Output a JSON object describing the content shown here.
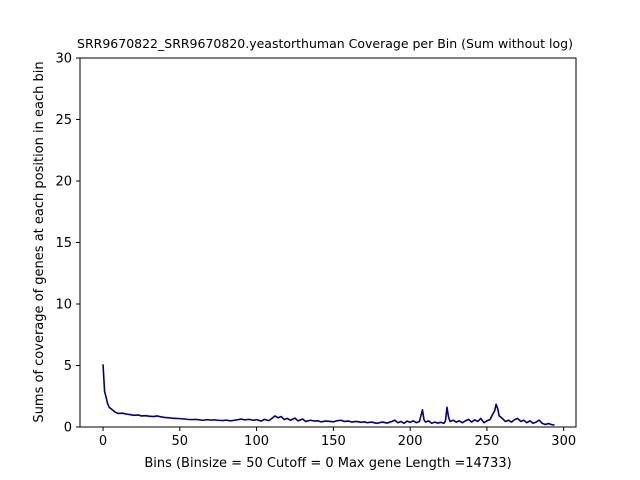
{
  "chart_data": {
    "type": "line",
    "title": "SRR9670822_SRR9670820.yeastorthuman Coverage per Bin (Sum without log)",
    "xlabel": "Bins  (Binsize = 50 Cutoff = 0 Max gene Length =14733)",
    "ylabel": "Sums of coverage of genes at each position in each bin",
    "xlim": [
      -15,
      308
    ],
    "ylim": [
      0,
      30
    ],
    "xticks": [
      0,
      50,
      100,
      150,
      200,
      250,
      300
    ],
    "yticks": [
      0,
      5,
      10,
      15,
      20,
      25,
      30
    ],
    "grid": false,
    "series": [
      {
        "color": "#00007f",
        "points": [
          [
            0,
            5.1
          ],
          [
            1,
            2.9
          ],
          [
            2,
            2.4
          ],
          [
            3,
            1.9
          ],
          [
            4,
            1.6
          ],
          [
            5,
            1.5
          ],
          [
            6,
            1.4
          ],
          [
            7,
            1.3
          ],
          [
            8,
            1.2
          ],
          [
            10,
            1.1
          ],
          [
            13,
            1.12
          ],
          [
            15,
            1.05
          ],
          [
            18,
            1.0
          ],
          [
            20,
            0.95
          ],
          [
            23,
            0.98
          ],
          [
            25,
            0.9
          ],
          [
            28,
            0.92
          ],
          [
            30,
            0.88
          ],
          [
            33,
            0.85
          ],
          [
            35,
            0.9
          ],
          [
            38,
            0.82
          ],
          [
            40,
            0.78
          ],
          [
            43,
            0.75
          ],
          [
            45,
            0.72
          ],
          [
            48,
            0.7
          ],
          [
            50,
            0.68
          ],
          [
            53,
            0.65
          ],
          [
            55,
            0.62
          ],
          [
            58,
            0.6
          ],
          [
            60,
            0.62
          ],
          [
            63,
            0.58
          ],
          [
            65,
            0.55
          ],
          [
            68,
            0.6
          ],
          [
            70,
            0.56
          ],
          [
            73,
            0.58
          ],
          [
            75,
            0.55
          ],
          [
            78,
            0.52
          ],
          [
            80,
            0.56
          ],
          [
            83,
            0.5
          ],
          [
            85,
            0.54
          ],
          [
            88,
            0.6
          ],
          [
            90,
            0.65
          ],
          [
            92,
            0.58
          ],
          [
            95,
            0.62
          ],
          [
            98,
            0.55
          ],
          [
            100,
            0.6
          ],
          [
            103,
            0.48
          ],
          [
            105,
            0.62
          ],
          [
            108,
            0.52
          ],
          [
            110,
            0.7
          ],
          [
            112,
            0.9
          ],
          [
            114,
            0.75
          ],
          [
            116,
            0.85
          ],
          [
            118,
            0.6
          ],
          [
            120,
            0.7
          ],
          [
            122,
            0.55
          ],
          [
            125,
            0.72
          ],
          [
            127,
            0.5
          ],
          [
            130,
            0.65
          ],
          [
            132,
            0.45
          ],
          [
            135,
            0.55
          ],
          [
            138,
            0.48
          ],
          [
            140,
            0.5
          ],
          [
            142,
            0.42
          ],
          [
            145,
            0.48
          ],
          [
            148,
            0.45
          ],
          [
            150,
            0.42
          ],
          [
            152,
            0.5
          ],
          [
            155,
            0.55
          ],
          [
            157,
            0.45
          ],
          [
            160,
            0.48
          ],
          [
            162,
            0.4
          ],
          [
            165,
            0.45
          ],
          [
            168,
            0.38
          ],
          [
            170,
            0.42
          ],
          [
            172,
            0.35
          ],
          [
            175,
            0.4
          ],
          [
            178,
            0.3
          ],
          [
            180,
            0.35
          ],
          [
            182,
            0.4
          ],
          [
            185,
            0.32
          ],
          [
            188,
            0.45
          ],
          [
            190,
            0.55
          ],
          [
            192,
            0.35
          ],
          [
            194,
            0.45
          ],
          [
            196,
            0.3
          ],
          [
            198,
            0.48
          ],
          [
            200,
            0.38
          ],
          [
            202,
            0.5
          ],
          [
            204,
            0.35
          ],
          [
            206,
            0.45
          ],
          [
            207,
            0.9
          ],
          [
            208,
            1.4
          ],
          [
            209,
            0.6
          ],
          [
            210,
            0.4
          ],
          [
            212,
            0.5
          ],
          [
            214,
            0.3
          ],
          [
            216,
            0.4
          ],
          [
            218,
            0.32
          ],
          [
            220,
            0.38
          ],
          [
            222,
            0.3
          ],
          [
            223,
            0.5
          ],
          [
            224,
            1.6
          ],
          [
            225,
            0.8
          ],
          [
            226,
            0.45
          ],
          [
            228,
            0.55
          ],
          [
            230,
            0.4
          ],
          [
            232,
            0.5
          ],
          [
            234,
            0.35
          ],
          [
            236,
            0.5
          ],
          [
            238,
            0.62
          ],
          [
            240,
            0.4
          ],
          [
            242,
            0.58
          ],
          [
            244,
            0.45
          ],
          [
            246,
            0.7
          ],
          [
            248,
            0.35
          ],
          [
            250,
            0.5
          ],
          [
            252,
            0.6
          ],
          [
            254,
            1.1
          ],
          [
            255,
            1.3
          ],
          [
            256,
            1.85
          ],
          [
            257,
            1.5
          ],
          [
            258,
            0.9
          ],
          [
            260,
            0.7
          ],
          [
            262,
            0.45
          ],
          [
            264,
            0.55
          ],
          [
            266,
            0.4
          ],
          [
            268,
            0.6
          ],
          [
            270,
            0.7
          ],
          [
            272,
            0.45
          ],
          [
            274,
            0.55
          ],
          [
            276,
            0.35
          ],
          [
            278,
            0.5
          ],
          [
            280,
            0.3
          ],
          [
            282,
            0.4
          ],
          [
            284,
            0.55
          ],
          [
            286,
            0.3
          ],
          [
            288,
            0.2
          ],
          [
            290,
            0.28
          ],
          [
            292,
            0.2
          ],
          [
            294,
            0.15
          ]
        ]
      }
    ]
  }
}
